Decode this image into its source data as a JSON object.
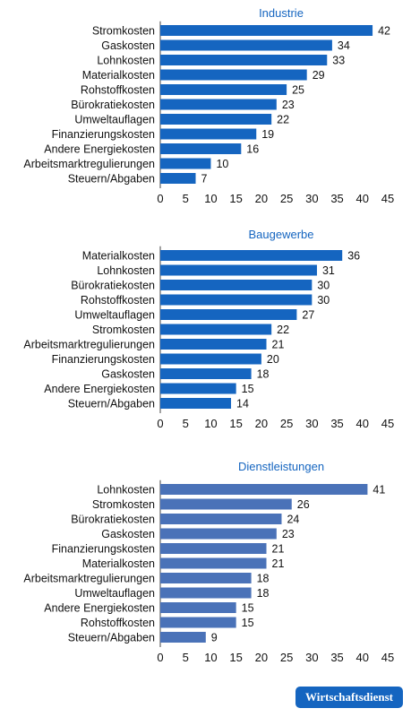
{
  "chart_data": [
    {
      "type": "bar",
      "orientation": "horizontal",
      "title": "Industrie",
      "categories": [
        "Stromkosten",
        "Gaskosten",
        "Lohnkosten",
        "Materialkosten",
        "Rohstoffkosten",
        "Bürokratiekosten",
        "Umweltauflagen",
        "Finanzierungskosten",
        "Andere Energiekosten",
        "Arbeitsmarktregulierungen",
        "Steuern/Abgaben"
      ],
      "values": [
        42,
        34,
        33,
        29,
        25,
        23,
        22,
        19,
        16,
        10,
        7
      ],
      "xlim": [
        0,
        45
      ],
      "xticks": [
        "0",
        "5",
        "10",
        "15",
        "20",
        "25",
        "30",
        "35",
        "40",
        "45"
      ],
      "color": "#1565c0",
      "grid": false
    },
    {
      "type": "bar",
      "orientation": "horizontal",
      "title": "Baugewerbe",
      "categories": [
        "Materialkosten",
        "Lohnkosten",
        "Bürokratiekosten",
        "Rohstoffkosten",
        "Umweltauflagen",
        "Stromkosten",
        "Arbeitsmarktregulierungen",
        "Finanzierungskosten",
        "Gaskosten",
        "Andere Energiekosten",
        "Steuern/Abgaben"
      ],
      "values": [
        36,
        31,
        30,
        30,
        27,
        22,
        21,
        20,
        18,
        15,
        14
      ],
      "xlim": [
        0,
        45
      ],
      "xticks": [
        "0",
        "5",
        "10",
        "15",
        "20",
        "25",
        "30",
        "35",
        "40",
        "45"
      ],
      "color": "#1565c0",
      "grid": false
    },
    {
      "type": "bar",
      "orientation": "horizontal",
      "title": "Dienstleistungen",
      "categories": [
        "Lohnkosten",
        "Stromkosten",
        "Bürokratiekosten",
        "Gaskosten",
        "Finanzierungskosten",
        "Materialkosten",
        "Arbeitsmarktregulierungen",
        "Umweltauflagen",
        "Andere Energiekosten",
        "Rohstoffkosten",
        "Steuern/Abgaben"
      ],
      "values": [
        41,
        26,
        24,
        23,
        21,
        21,
        18,
        18,
        15,
        15,
        9
      ],
      "xlim": [
        0,
        45
      ],
      "xticks": [
        "0",
        "5",
        "10",
        "15",
        "20",
        "25",
        "30",
        "35",
        "40",
        "45"
      ],
      "color": "#4a72b8",
      "grid": false
    }
  ],
  "footer": {
    "source_badge": "Wirtschaftsdienst"
  },
  "colors": {
    "title": "#1565c0",
    "text": "#111111",
    "axis": "#444444",
    "badge_bg": "#1565c0",
    "badge_text": "#ffffff"
  }
}
